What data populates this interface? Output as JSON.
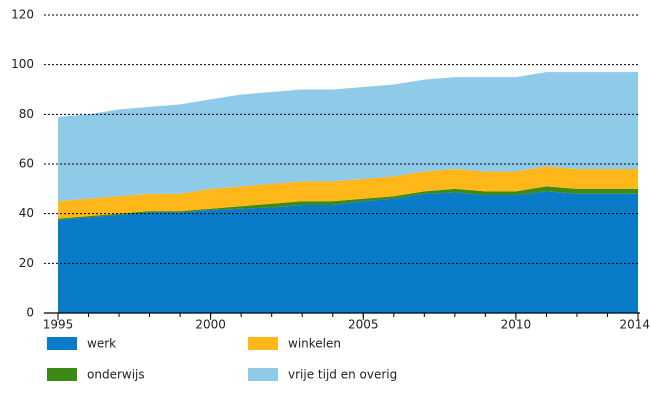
{
  "chart_data": {
    "type": "stacked_area",
    "x": [
      1995,
      1996,
      1997,
      1998,
      1999,
      2000,
      2001,
      2002,
      2003,
      2004,
      2005,
      2006,
      2007,
      2008,
      2009,
      2010,
      2011,
      2012,
      2013,
      2014
    ],
    "series": [
      {
        "name": "werk",
        "color": "#0a7bc8",
        "values": [
          37.5,
          38.5,
          39.5,
          40.5,
          40.5,
          41.5,
          42,
          42.5,
          43.5,
          43.5,
          45,
          46,
          48,
          48.5,
          47.5,
          47.5,
          49,
          48,
          48,
          48
        ]
      },
      {
        "name": "onderwijs",
        "color": "#3a8a14",
        "values": [
          0.5,
          0.5,
          0.5,
          0.5,
          0.5,
          0.5,
          1,
          1.5,
          1.5,
          1.5,
          1,
          1,
          1,
          1.5,
          1.5,
          1.5,
          2,
          2,
          2,
          2
        ]
      },
      {
        "name": "winkelen",
        "color": "#ffb719",
        "values": [
          7,
          7,
          7,
          7,
          7,
          8,
          8,
          8,
          8,
          8,
          8,
          8,
          8,
          8,
          8,
          8,
          8,
          8,
          8,
          8
        ]
      },
      {
        "name": "vrije tijd en overig",
        "color": "#8fcae8",
        "values": [
          34,
          34,
          35,
          35,
          36,
          36,
          37,
          37,
          37,
          37,
          37,
          37,
          37,
          37,
          38,
          38,
          38,
          39,
          39,
          39
        ]
      }
    ],
    "xlim": [
      1995,
      2014
    ],
    "xticks": [
      1995,
      2000,
      2005,
      2010,
      2014
    ],
    "ylim": [
      0,
      120
    ],
    "yticks": [
      0,
      20,
      40,
      60,
      80,
      100,
      120
    ],
    "grid": true
  }
}
